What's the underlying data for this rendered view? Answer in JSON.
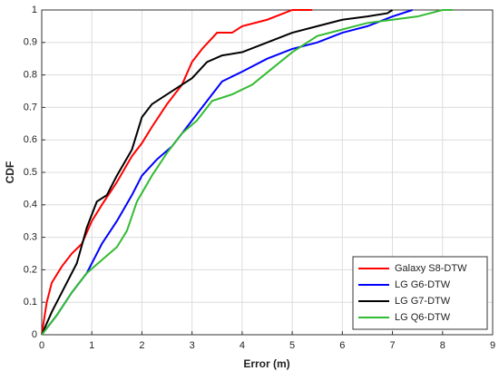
{
  "chart_data": {
    "type": "line",
    "xlabel": "Error (m)",
    "ylabel": "CDF",
    "xlim": [
      0,
      9
    ],
    "xticks": [
      0,
      1,
      2,
      3,
      4,
      5,
      6,
      7,
      8,
      9
    ],
    "ylim": [
      0,
      1
    ],
    "yticks": [
      0,
      0.1,
      0.2,
      0.3,
      0.4,
      0.5,
      0.6,
      0.7,
      0.8,
      0.9,
      1
    ],
    "grid": true,
    "legend": "lower right",
    "series": [
      {
        "name": "Galaxy S8-DTW",
        "color": "#ff0000",
        "x": [
          0,
          0.1,
          0.2,
          0.4,
          0.6,
          0.8,
          1.0,
          1.2,
          1.5,
          1.8,
          2.0,
          2.2,
          2.5,
          2.8,
          3.0,
          3.2,
          3.5,
          3.8,
          4.0,
          4.5,
          5.0,
          5.4
        ],
        "values": [
          0,
          0.1,
          0.16,
          0.21,
          0.25,
          0.28,
          0.35,
          0.4,
          0.47,
          0.55,
          0.59,
          0.64,
          0.71,
          0.77,
          0.84,
          0.88,
          0.93,
          0.93,
          0.95,
          0.97,
          1.0,
          1.0
        ]
      },
      {
        "name": "LG G6-DTW",
        "color": "#0000ff",
        "x": [
          0,
          0.3,
          0.6,
          0.9,
          1.2,
          1.5,
          1.8,
          2.0,
          2.3,
          2.6,
          3.0,
          3.3,
          3.6,
          4.0,
          4.5,
          5.0,
          5.5,
          6.0,
          6.5,
          7.0,
          7.4
        ],
        "values": [
          0,
          0.06,
          0.13,
          0.19,
          0.28,
          0.35,
          0.43,
          0.49,
          0.54,
          0.58,
          0.66,
          0.72,
          0.78,
          0.81,
          0.85,
          0.88,
          0.9,
          0.93,
          0.95,
          0.98,
          1.0
        ]
      },
      {
        "name": "LG G7-DTW",
        "color": "#000000",
        "x": [
          0,
          0.2,
          0.4,
          0.7,
          0.9,
          1.1,
          1.3,
          1.5,
          1.8,
          2.0,
          2.2,
          2.5,
          2.8,
          3.0,
          3.3,
          3.6,
          4.0,
          4.5,
          5.0,
          5.5,
          6.0,
          6.5,
          6.9,
          7.0
        ],
        "values": [
          0,
          0.07,
          0.13,
          0.22,
          0.33,
          0.41,
          0.43,
          0.49,
          0.57,
          0.67,
          0.71,
          0.74,
          0.77,
          0.79,
          0.84,
          0.86,
          0.87,
          0.9,
          0.93,
          0.95,
          0.97,
          0.98,
          0.99,
          1.0
        ]
      },
      {
        "name": "LG Q6-DTW",
        "color": "#33bb33",
        "x": [
          0,
          0.3,
          0.6,
          0.9,
          1.2,
          1.5,
          1.7,
          1.9,
          2.2,
          2.5,
          2.8,
          3.1,
          3.4,
          3.8,
          4.2,
          4.6,
          5.0,
          5.5,
          6.0,
          6.5,
          7.0,
          7.5,
          8.0,
          8.2
        ],
        "values": [
          0,
          0.06,
          0.13,
          0.19,
          0.23,
          0.27,
          0.32,
          0.41,
          0.49,
          0.56,
          0.62,
          0.66,
          0.72,
          0.74,
          0.77,
          0.82,
          0.87,
          0.92,
          0.94,
          0.96,
          0.97,
          0.98,
          1.0,
          1.0
        ]
      }
    ]
  }
}
